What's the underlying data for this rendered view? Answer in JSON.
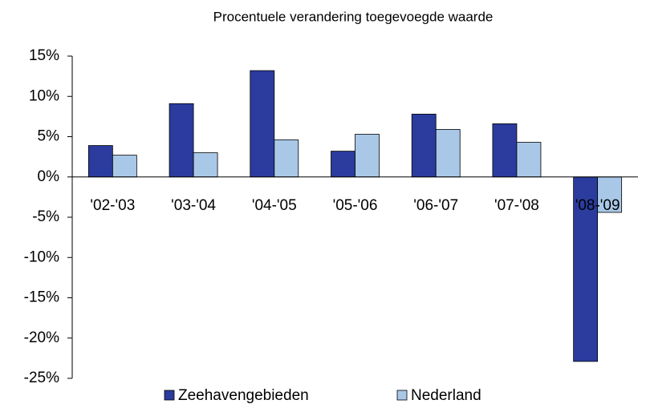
{
  "chart_data": {
    "type": "bar",
    "title": "Procentuele verandering toegevoegde waarde",
    "categories": [
      "'02-'03",
      "'03-'04",
      "'04-'05",
      "'05-'06",
      "'06-'07",
      "'07-'08",
      "'08-'09"
    ],
    "series": [
      {
        "name": "Zeehavengebieden",
        "color": "#2b3c9e",
        "values": [
          3.9,
          9.1,
          13.2,
          3.2,
          7.8,
          6.6,
          -22.9
        ]
      },
      {
        "name": "Nederland",
        "color": "#a9c8e8",
        "values": [
          2.7,
          3.0,
          4.6,
          5.3,
          5.9,
          4.3,
          -4.4
        ]
      }
    ],
    "ylim": [
      -25,
      15
    ],
    "yticks": [
      {
        "value": -25,
        "label": "-25%"
      },
      {
        "value": -20,
        "label": "-20%"
      },
      {
        "value": -15,
        "label": "-15%"
      },
      {
        "value": -10,
        "label": "-10%"
      },
      {
        "value": -5,
        "label": "-5%"
      },
      {
        "value": 0,
        "label": "0%"
      },
      {
        "value": 5,
        "label": "5%"
      },
      {
        "value": 10,
        "label": "10%"
      },
      {
        "value": 15,
        "label": "15%"
      }
    ],
    "legend": "bottom"
  }
}
